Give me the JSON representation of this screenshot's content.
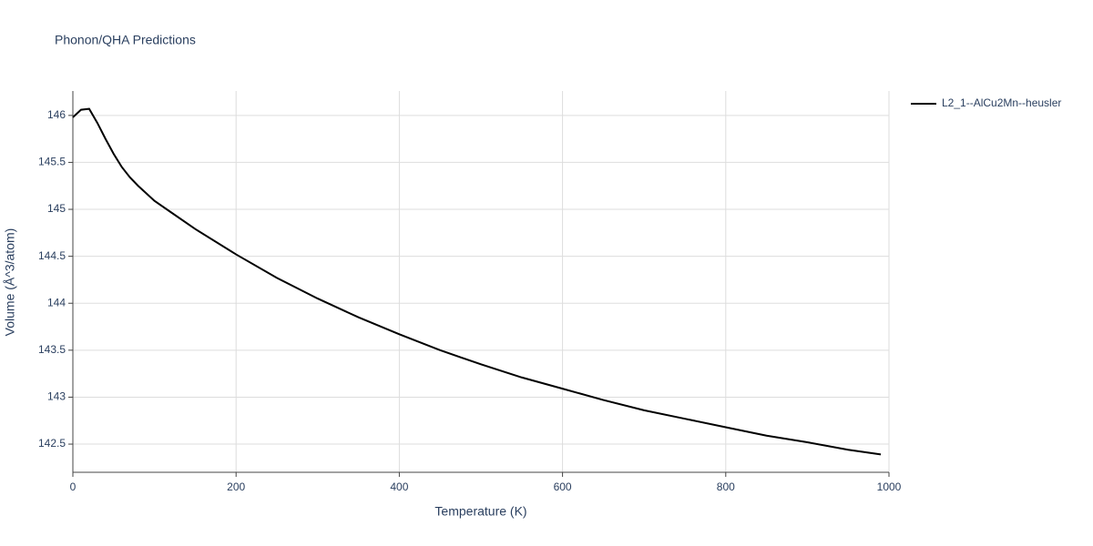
{
  "chart_data": {
    "type": "line",
    "title": "Phonon/QHA Predictions",
    "x_label": "Temperature (K)",
    "y_label": "Volume (Å^3/atom)",
    "x": [
      0,
      10,
      20,
      30,
      40,
      50,
      60,
      70,
      80,
      100,
      120,
      150,
      200,
      250,
      300,
      350,
      400,
      450,
      500,
      550,
      600,
      650,
      700,
      750,
      800,
      850,
      900,
      950,
      990
    ],
    "series": [
      {
        "name": "L2_1--AlCu2Mn--heusler",
        "color": "#000000",
        "values": [
          145.98,
          146.06,
          146.07,
          145.92,
          145.75,
          145.59,
          145.45,
          145.34,
          145.25,
          145.09,
          144.97,
          144.79,
          144.52,
          144.27,
          144.05,
          143.85,
          143.67,
          143.5,
          143.35,
          143.21,
          143.09,
          142.97,
          142.86,
          142.77,
          142.68,
          142.59,
          142.52,
          142.44,
          142.39
        ]
      }
    ],
    "xlim": [
      0,
      1000
    ],
    "ylim": [
      142.2,
      146.26
    ],
    "xticks": [
      0,
      200,
      400,
      600,
      800,
      1000
    ],
    "yticks": [
      142.5,
      143,
      143.5,
      144,
      144.5,
      145,
      145.5,
      146
    ],
    "grid": true
  }
}
